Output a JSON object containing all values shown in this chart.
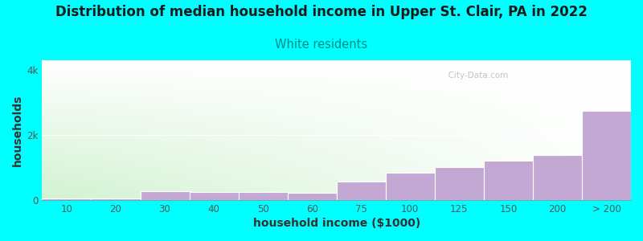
{
  "title": "Distribution of median household income in Upper St. Clair, PA in 2022",
  "subtitle": "White residents",
  "xlabel": "household income ($1000)",
  "ylabel": "households",
  "background_color": "#00FFFF",
  "bar_color": "#c4a8d4",
  "bar_edge_color": "#ffffff",
  "categories": [
    "10",
    "20",
    "30",
    "40",
    "50",
    "60",
    "75",
    "100",
    "125",
    "150",
    "200",
    "> 200"
  ],
  "values": [
    40,
    50,
    270,
    240,
    240,
    210,
    560,
    830,
    1020,
    1200,
    1380,
    2750
  ],
  "ylim": [
    0,
    4300
  ],
  "yticks": [
    0,
    2000,
    4000
  ],
  "ytick_labels": [
    "0",
    "2k",
    "4k"
  ],
  "title_fontsize": 12,
  "subtitle_fontsize": 10.5,
  "axis_label_fontsize": 10,
  "subtitle_color": "#008B8B",
  "title_color": "#1a1a1a",
  "watermark": "  City-Data.com",
  "tick_color": "#555555"
}
